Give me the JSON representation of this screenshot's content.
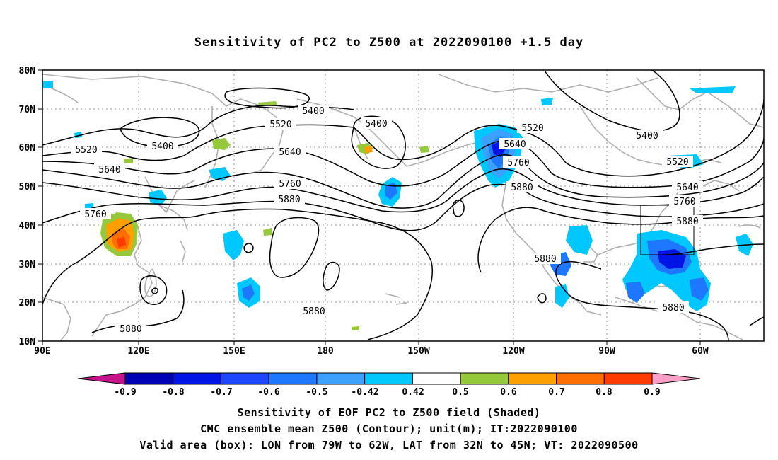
{
  "title": "Sensitivity of PC2 to Z500 at 2022090100 +1.5 day",
  "lat_labels": [
    "80N",
    "70N",
    "60N",
    "50N",
    "40N",
    "30N",
    "20N",
    "10N"
  ],
  "lon_labels": [
    "90E",
    "120E",
    "150E",
    "180",
    "150W",
    "120W",
    "90W",
    "60W"
  ],
  "contour_labels": {
    "c5400_a": "5400",
    "c5400_b": "5400",
    "c5400_c": "5400",
    "c5400_d": "5400",
    "c5520_a": "5520",
    "c5520_b": "5520",
    "c5520_c": "5520",
    "c5520_d": "5520",
    "c5640_a": "5640",
    "c5640_b": "5640",
    "c5640_c": "5640",
    "c5640_d": "5640",
    "c5760_a": "5760",
    "c5760_b": "5760",
    "c5760_c": "5760",
    "c5760_d": "5760",
    "c5880_a": "5880",
    "c5880_b": "5880",
    "c5880_c": "5880",
    "c5880_d": "5880",
    "c5880_e": "5880",
    "c5880_f": "5880",
    "c5880_g": "5880"
  },
  "colorbar": {
    "labels": [
      "-0.9",
      "-0.8",
      "-0.7",
      "-0.6",
      "-0.5",
      "-0.42",
      "0.42",
      "0.5",
      "0.6",
      "0.7",
      "0.8",
      "0.9"
    ],
    "colors": [
      "#0000b4",
      "#0014e6",
      "#1e46ff",
      "#1e78ff",
      "#3ca0ff",
      "#00c8ff",
      "#ffffff",
      "#96c83c",
      "#ffa000",
      "#ff6e00",
      "#ff3c00",
      "#ff0000"
    ],
    "low_end_color": "#c8148c",
    "high_end_color": "#ffa0c8"
  },
  "footer": {
    "line1": "Sensitivity of EOF PC2 to Z500 field (Shaded)",
    "line2": "CMC ensemble mean Z500 (Contour); unit(m); IT:2022090100",
    "line3": "Valid area (box): LON from 79W to 62W, LAT from 32N to 45N; VT: 2022090500"
  }
}
